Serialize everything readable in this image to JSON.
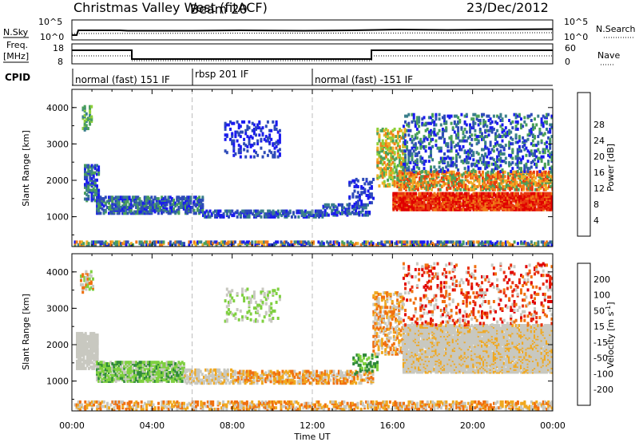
{
  "header": {
    "title": "Christmas Valley West (fitACF)",
    "beam": "Beam 20",
    "date": "23/Dec/2012"
  },
  "top_panels": {
    "sky_label": "N.Sky",
    "search_label": "N.Search",
    "sky_ticks": [
      "10^5",
      "10^0"
    ],
    "search_ticks": [
      "10^5",
      "10^0"
    ],
    "freq_label_1": "Freq.",
    "freq_label_2": "[MHz]",
    "freq_ticks": [
      "18",
      "8"
    ],
    "nave_label": "Nave",
    "nave_ticks": [
      "60",
      "0"
    ],
    "cpid_label": "CPID",
    "cpid_segments": [
      {
        "label": "normal (fast) 151 IF",
        "start": 0,
        "end": 6
      },
      {
        "label": "rbsp 201 IF",
        "start": 6,
        "end": 12
      },
      {
        "label": "normal (fast) -151 IF",
        "start": 12,
        "end": 24
      }
    ]
  },
  "chart_data": [
    {
      "type": "heatmap",
      "title": "",
      "xlabel": "Time UT",
      "ylabel": "Slant Range [km]",
      "xlim": [
        0,
        24
      ],
      "ylim": [
        180,
        4500
      ],
      "x_ticks": [
        "00:00",
        "04:00",
        "08:00",
        "12:00",
        "16:00",
        "20:00",
        "00:00"
      ],
      "y_ticks": [
        "1000",
        "2000",
        "3000",
        "4000"
      ],
      "colorbar": {
        "label": "Power [dB]",
        "ticks": [
          "4",
          "8",
          "12",
          "16",
          "20",
          "24",
          "28"
        ],
        "colors": [
          "#1a1af0",
          "#2e4bb8",
          "#3a7f8c",
          "#4aa05a",
          "#8fd03a",
          "#f0b028",
          "#f07a18",
          "#e83a10",
          "#e00000"
        ]
      },
      "vertical_lines_ut": [
        6,
        12
      ]
    },
    {
      "type": "heatmap",
      "title": "",
      "xlabel": "Time UT",
      "ylabel": "Slant Range [km]",
      "xlim": [
        0,
        24
      ],
      "ylim": [
        180,
        4500
      ],
      "x_ticks": [
        "00:00",
        "04:00",
        "08:00",
        "12:00",
        "16:00",
        "20:00",
        "00:00"
      ],
      "y_ticks": [
        "1000",
        "2000",
        "3000",
        "4000"
      ],
      "colorbar": {
        "label_main": "Velocity [m s",
        "label_sup": "-1",
        "label_end": "]",
        "ticks": [
          "200",
          "100",
          "50",
          "15",
          "-15",
          "-50",
          "-100",
          "-200"
        ],
        "colors": [
          "#1a2ab0",
          "#2f6fc0",
          "#2f8a3a",
          "#7fd040",
          "#c8c8c0",
          "#f0a820",
          "#f07010",
          "#e83010",
          "#e00000"
        ]
      },
      "vertical_lines_ut": [
        6,
        12
      ]
    }
  ],
  "colors": {
    "ground_grey": "#bcbcb4",
    "axis": "#000000",
    "guide": "#bdbdbd"
  }
}
